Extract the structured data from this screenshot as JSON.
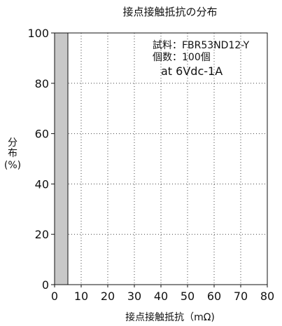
{
  "chart_data": {
    "type": "bar",
    "title": "接点接触抵抗の分布",
    "xlabel": "接点接触抵抗（mΩ)",
    "ylabel_lines": [
      "分",
      "布",
      "(%)"
    ],
    "xlim": [
      0,
      80
    ],
    "ylim": [
      0,
      100
    ],
    "x_ticks": [
      0,
      10,
      20,
      30,
      40,
      50,
      60,
      70,
      80
    ],
    "y_ticks": [
      0,
      20,
      40,
      60,
      80,
      100
    ],
    "grid": true,
    "bins": [
      {
        "x_start": 0,
        "x_end": 5,
        "value": 100
      }
    ],
    "bar_color": "#c8c8c8",
    "annotations": [
      "試料：FBR53ND12-Y",
      "個数：100個",
      "at 6Vdc-1A"
    ]
  }
}
